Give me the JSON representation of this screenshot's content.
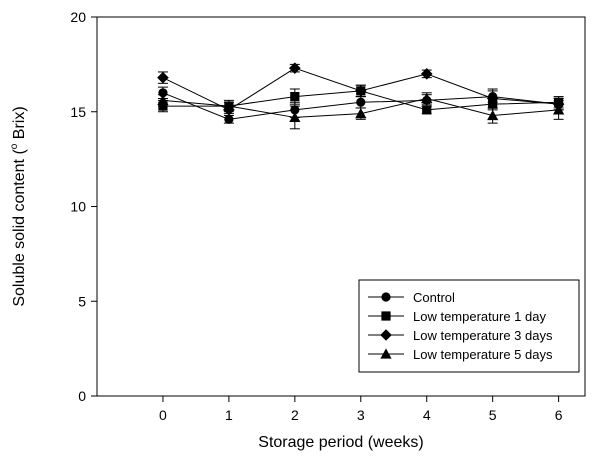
{
  "chart_data": {
    "type": "line",
    "title": "",
    "xlabel": "Storage period (weeks)",
    "ylabel_prefix": "Soluble solid content (",
    "ylabel_degree": "o",
    "ylabel_suffix": " Brix)",
    "x": [
      0,
      1,
      2,
      3,
      4,
      5,
      6
    ],
    "xlim": [
      -1,
      6.4
    ],
    "ylim": [
      0,
      20
    ],
    "xticks": [
      "0",
      "1",
      "2",
      "3",
      "4",
      "5",
      "6"
    ],
    "yticks": [
      "0",
      "5",
      "10",
      "15",
      "20"
    ],
    "grid": false,
    "legend_position": "bottom-right",
    "series": [
      {
        "name": "Control",
        "marker": "circle",
        "values": [
          16.0,
          14.6,
          15.1,
          15.5,
          15.6,
          15.8,
          15.4
        ],
        "errors": [
          0.3,
          0.2,
          0.4,
          0.3,
          0.3,
          0.3,
          0.3
        ]
      },
      {
        "name": "Low temperature 1 day",
        "marker": "square",
        "values": [
          15.3,
          15.3,
          15.8,
          16.1,
          15.1,
          15.4,
          15.5
        ],
        "errors": [
          0.3,
          0.2,
          0.4,
          0.3,
          0.2,
          0.3,
          0.3
        ]
      },
      {
        "name": "Low temperature 3 days",
        "marker": "diamond",
        "values": [
          16.8,
          15.1,
          17.3,
          16.1,
          17.0,
          15.7,
          15.4
        ],
        "errors": [
          0.3,
          0.2,
          0.2,
          0.3,
          0.2,
          0.5,
          0.3
        ]
      },
      {
        "name": "Low temperature 5 days",
        "marker": "triangle",
        "values": [
          15.6,
          15.3,
          14.7,
          14.9,
          15.7,
          14.8,
          15.1
        ],
        "errors": [
          0.3,
          0.3,
          0.6,
          0.3,
          0.3,
          0.4,
          0.5
        ]
      }
    ]
  }
}
